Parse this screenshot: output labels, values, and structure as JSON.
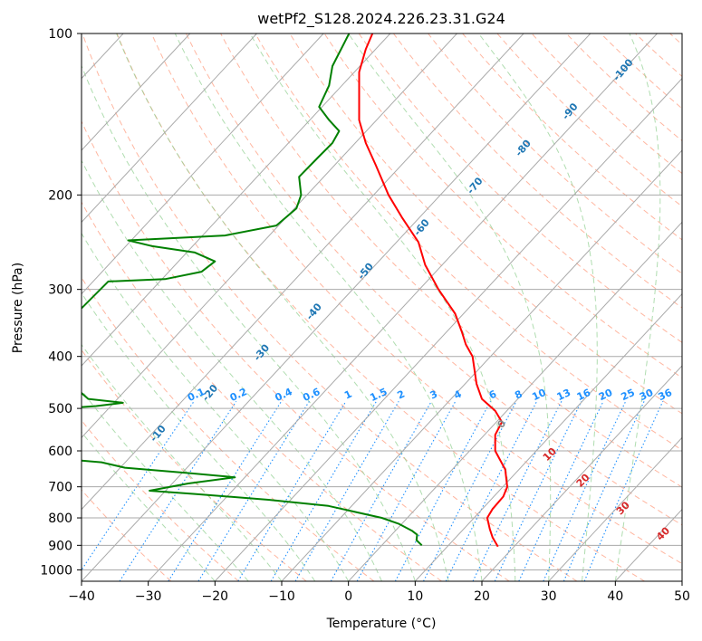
{
  "chart_data": {
    "type": "skew-t",
    "title": "wetPf2_S128.2024.226.23.31.G24",
    "xlabel": "Temperature (°C)",
    "ylabel": "Pressure (hPa)",
    "xlim": [
      -40,
      50
    ],
    "ylim": [
      1050,
      100
    ],
    "y_scale": "log",
    "x_ticks": [
      -40,
      -30,
      -20,
      -10,
      0,
      10,
      20,
      30,
      40,
      50
    ],
    "x_tick_labels": [
      "−40",
      "−30",
      "−20",
      "−10",
      "0",
      "10",
      "20",
      "30",
      "40",
      "50"
    ],
    "y_ticks": [
      100,
      200,
      300,
      400,
      500,
      600,
      700,
      800,
      900,
      1000
    ],
    "y_tick_labels": [
      "100",
      "200",
      "300",
      "400",
      "500",
      "600",
      "700",
      "800",
      "900",
      "1000"
    ],
    "grid": true,
    "colors": {
      "temperature": "#ff0000",
      "dewpoint": "#008000",
      "isotherm": "#aaaaaa",
      "dry_adiabat": "#ff9e80",
      "moist_adiabat": "#8fcf8f",
      "mixing_ratio": "#1e90ff",
      "tan_contour": "#d2b48c",
      "height_label": "#1f77b4",
      "red_label": "#d62728"
    },
    "height_labels": [
      {
        "text": "-100",
        "p": 118
      },
      {
        "text": "-90",
        "p": 141
      },
      {
        "text": "-80",
        "p": 165
      },
      {
        "text": "-70",
        "p": 194
      },
      {
        "text": "-60",
        "p": 232
      },
      {
        "text": "-50",
        "p": 280
      },
      {
        "text": "-40",
        "p": 333
      },
      {
        "text": "-30",
        "p": 397
      },
      {
        "text": "-20",
        "p": 472
      },
      {
        "text": "-10",
        "p": 562
      }
    ],
    "mixing_ratio_labels": [
      "0.1",
      "0.2",
      "0.4",
      "0.6",
      "1",
      "1.5",
      "2",
      "3",
      "4",
      "6",
      "8",
      "10",
      "13",
      "16",
      "20",
      "25",
      "30",
      "36"
    ],
    "mixing_ratio_label_t": [
      -24,
      -17,
      -10,
      -5,
      0.5,
      5,
      8.5,
      13,
      17,
      22,
      26,
      29.5,
      33,
      37,
      39.5,
      43,
      46,
      50
    ],
    "mixing_ratio_label_p": 485,
    "red_labels": [
      {
        "text": "0",
        "t": 23.3,
        "p": 540
      },
      {
        "text": "10",
        "t": 30.5,
        "p": 615
      },
      {
        "text": "20",
        "t": 35.5,
        "p": 688
      },
      {
        "text": "30",
        "t": 41.5,
        "p": 775
      },
      {
        "text": "40",
        "t": 47.5,
        "p": 865
      }
    ],
    "series": [
      {
        "key": "temperature",
        "profile": [
          {
            "p": 100,
            "t": 3.6
          },
          {
            "p": 107,
            "t": 2.6
          },
          {
            "p": 118,
            "t": 1.6
          },
          {
            "p": 131,
            "t": 1.6
          },
          {
            "p": 145,
            "t": 1.6
          },
          {
            "p": 160,
            "t": 2.6
          },
          {
            "p": 176,
            "t": 4.1
          },
          {
            "p": 200,
            "t": 6.0
          },
          {
            "p": 220,
            "t": 8.0
          },
          {
            "p": 245,
            "t": 10.5
          },
          {
            "p": 270,
            "t": 11.5
          },
          {
            "p": 300,
            "t": 13.5
          },
          {
            "p": 333,
            "t": 16.0
          },
          {
            "p": 360,
            "t": 17.0
          },
          {
            "p": 380,
            "t": 17.6
          },
          {
            "p": 400,
            "t": 18.6
          },
          {
            "p": 450,
            "t": 19.2
          },
          {
            "p": 480,
            "t": 20.0
          },
          {
            "p": 505,
            "t": 22.0
          },
          {
            "p": 530,
            "t": 23.0
          },
          {
            "p": 560,
            "t": 22.0
          },
          {
            "p": 600,
            "t": 22.0
          },
          {
            "p": 650,
            "t": 23.5
          },
          {
            "p": 700,
            "t": 23.8
          },
          {
            "p": 730,
            "t": 23.2
          },
          {
            "p": 770,
            "t": 21.6
          },
          {
            "p": 800,
            "t": 20.8
          },
          {
            "p": 840,
            "t": 21.2
          },
          {
            "p": 870,
            "t": 21.6
          },
          {
            "p": 905,
            "t": 22.4
          }
        ]
      },
      {
        "key": "dewpoint",
        "profile": [
          {
            "p": 100,
            "t": 0.1
          },
          {
            "p": 115,
            "t": -2.4
          },
          {
            "p": 125,
            "t": -2.9
          },
          {
            "p": 137,
            "t": -4.4
          },
          {
            "p": 145,
            "t": -2.9
          },
          {
            "p": 152,
            "t": -1.4
          },
          {
            "p": 160,
            "t": -2.4
          },
          {
            "p": 170,
            "t": -4.5
          },
          {
            "p": 185,
            "t": -7.4
          },
          {
            "p": 200,
            "t": -7.1
          },
          {
            "p": 212,
            "t": -7.8
          },
          {
            "p": 228,
            "t": -10.8
          },
          {
            "p": 238,
            "t": -18.5
          },
          {
            "p": 243,
            "t": -33.0
          },
          {
            "p": 249,
            "t": -29.5
          },
          {
            "p": 256,
            "t": -23.0
          },
          {
            "p": 266,
            "t": -20.0
          },
          {
            "p": 278,
            "t": -22.0
          },
          {
            "p": 287,
            "t": -27.5
          },
          {
            "p": 290,
            "t": -36.0
          },
          {
            "p": 330,
            "t": -40.5
          },
          {
            "p": 440,
            "t": -42.0
          },
          {
            "p": 460,
            "t": -40.7
          },
          {
            "p": 480,
            "t": -39.0
          },
          {
            "p": 488,
            "t": -33.8
          },
          {
            "p": 495,
            "t": -37.8
          },
          {
            "p": 498,
            "t": -41.0
          },
          {
            "p": 620,
            "t": -44.0
          },
          {
            "p": 630,
            "t": -37.0
          },
          {
            "p": 645,
            "t": -33.5
          },
          {
            "p": 660,
            "t": -24.0
          },
          {
            "p": 672,
            "t": -17.0
          },
          {
            "p": 690,
            "t": -24.0
          },
          {
            "p": 712,
            "t": -29.8
          },
          {
            "p": 722,
            "t": -23.0
          },
          {
            "p": 740,
            "t": -12.0
          },
          {
            "p": 760,
            "t": -3.0
          },
          {
            "p": 800,
            "t": 5.0
          },
          {
            "p": 820,
            "t": 7.5
          },
          {
            "p": 845,
            "t": 9.5
          },
          {
            "p": 860,
            "t": 10.3
          },
          {
            "p": 880,
            "t": 10.2
          },
          {
            "p": 900,
            "t": 11.0
          }
        ]
      }
    ]
  }
}
